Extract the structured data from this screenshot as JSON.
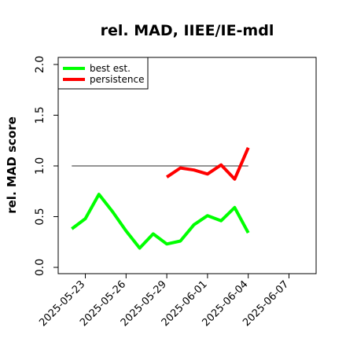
{
  "chart_data": {
    "type": "line",
    "title": "rel. MAD, IIEE/IE-mdl",
    "xlabel": "",
    "ylabel": "rel. MAD score",
    "ylim": [
      0.0,
      2.0
    ],
    "xlim": [
      "2025-05-21",
      "2025-06-09"
    ],
    "yticks": [
      "0.0",
      "0.5",
      "1.0",
      "1.5",
      "2.0"
    ],
    "xticks": [
      "2025-05-23",
      "2025-05-26",
      "2025-05-29",
      "2025-06-01",
      "2025-06-04",
      "2025-06-07"
    ],
    "reference_line": {
      "y": 1.0,
      "x_start": "2025-05-22",
      "x_end": "2025-06-04",
      "color": "#555555"
    },
    "legend_position": "top-left",
    "series": [
      {
        "name": "best est.",
        "color": "#00ff00",
        "x": [
          "2025-05-22",
          "2025-05-23",
          "2025-05-24",
          "2025-05-25",
          "2025-05-26",
          "2025-05-27",
          "2025-05-28",
          "2025-05-29",
          "2025-05-30",
          "2025-05-31",
          "2025-06-01",
          "2025-06-02",
          "2025-06-03",
          "2025-06-04"
        ],
        "values": [
          0.38,
          0.48,
          0.72,
          0.55,
          0.36,
          0.19,
          0.33,
          0.23,
          0.26,
          0.42,
          0.51,
          0.46,
          0.59,
          0.34
        ]
      },
      {
        "name": "persistence",
        "color": "#ff0000",
        "x": [
          "2025-05-29",
          "2025-05-30",
          "2025-05-31",
          "2025-06-01",
          "2025-06-02",
          "2025-06-03",
          "2025-06-04"
        ],
        "values": [
          0.89,
          0.98,
          0.96,
          0.92,
          1.01,
          0.87,
          1.18
        ]
      }
    ]
  }
}
